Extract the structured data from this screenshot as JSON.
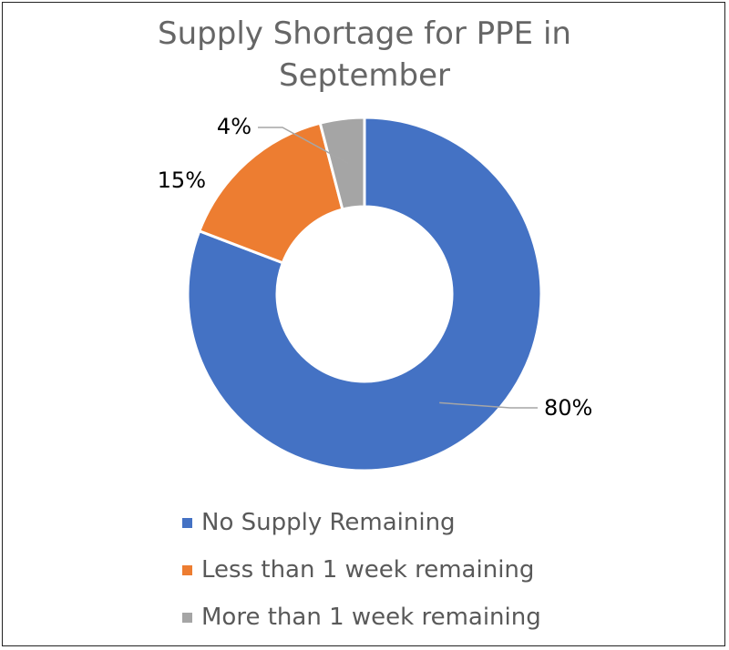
{
  "chart_data": {
    "type": "pie",
    "donut": true,
    "title_lines": [
      "Supply Shortage for PPE in",
      "September"
    ],
    "slices": [
      {
        "name": "No Supply Remaining",
        "value": 80,
        "label": "80%",
        "color": "#4472C4"
      },
      {
        "name": "Less than 1 week remaining",
        "value": 15,
        "label": "15%",
        "color": "#ED7D31"
      },
      {
        "name": "More than 1 week remaining",
        "value": 4,
        "label": "4%",
        "color": "#A5A5A5"
      }
    ],
    "legend_position": "bottom"
  }
}
